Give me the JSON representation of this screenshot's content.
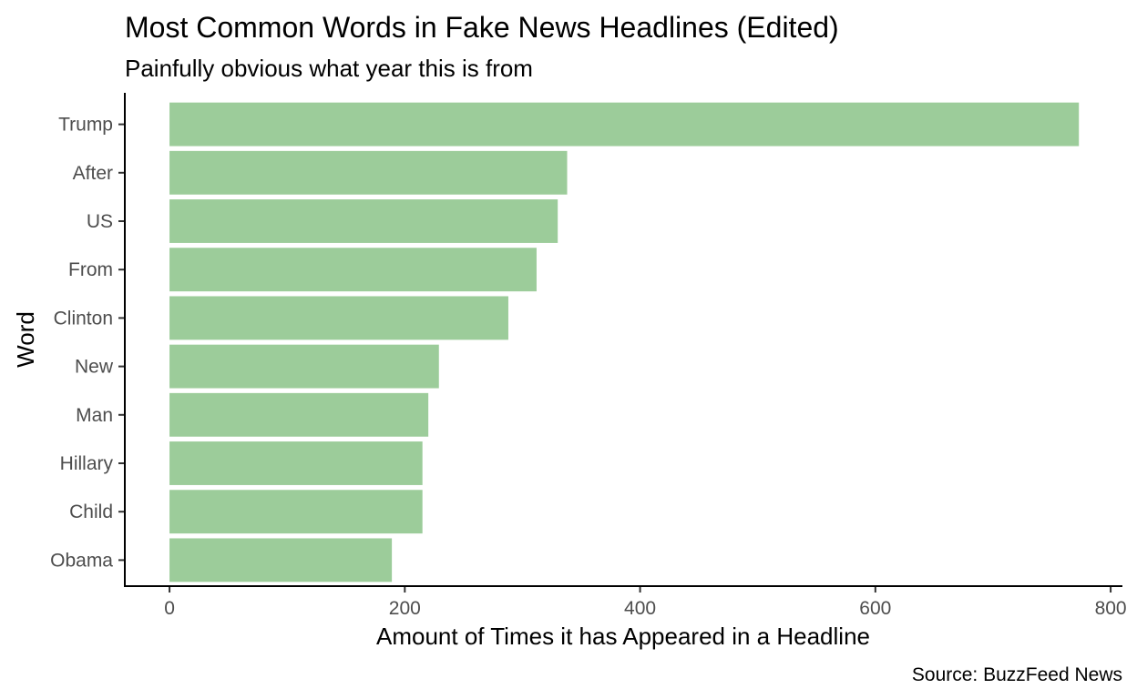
{
  "chart_data": {
    "type": "bar",
    "orientation": "horizontal",
    "title": "Most Common Words in Fake News Headlines (Edited)",
    "subtitle": "Painfully obvious what year this is from",
    "xlabel": "Amount of Times it has Appeared in a Headline",
    "ylabel": "Word",
    "caption": "Source: BuzzFeed News",
    "categories": [
      "Trump",
      "After",
      "US",
      "From",
      "Clinton",
      "New",
      "Man",
      "Hillary",
      "Child",
      "Obama"
    ],
    "values": [
      773,
      338,
      330,
      312,
      288,
      229,
      220,
      215,
      215,
      189
    ],
    "xlim": [
      -38,
      810
    ],
    "xticks": [
      0,
      200,
      400,
      600,
      800
    ],
    "bar_color": "#9ccc9a",
    "grid": false,
    "legend": "none"
  }
}
